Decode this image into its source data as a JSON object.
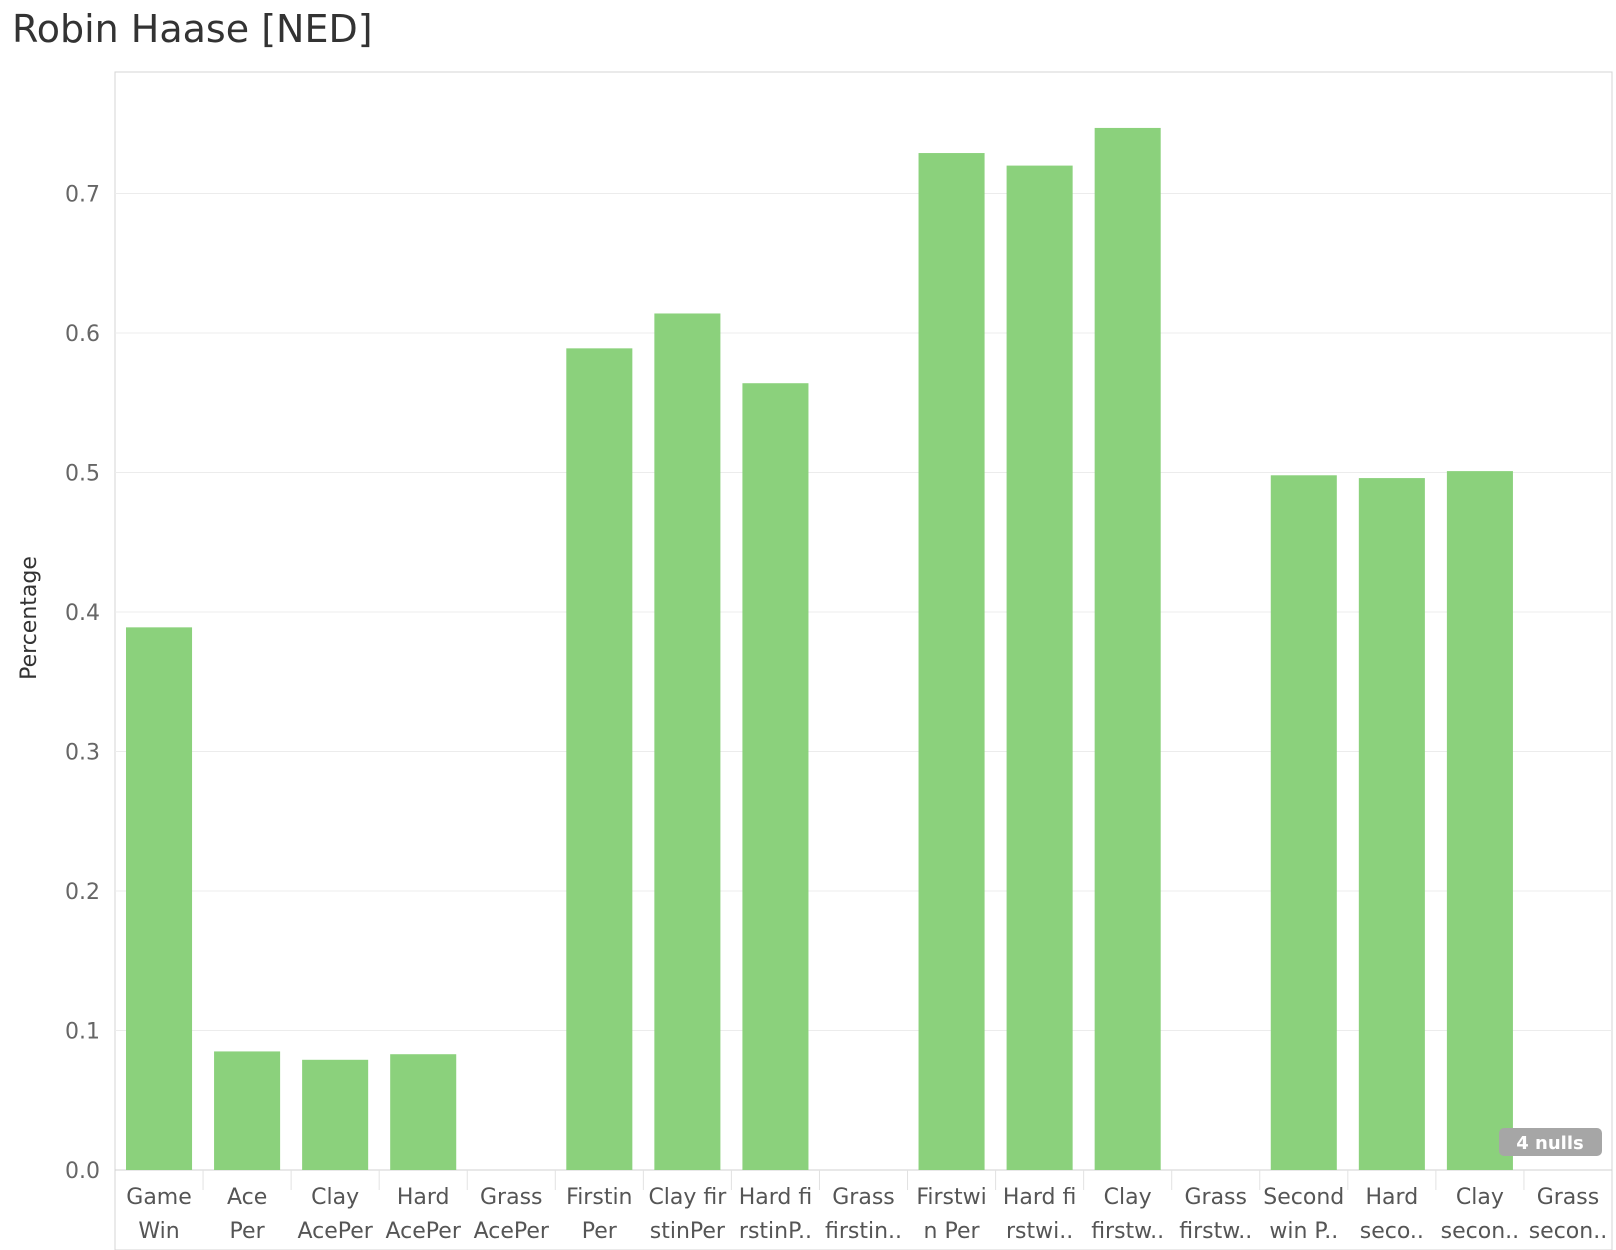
{
  "chart_data": {
    "type": "bar",
    "title": "Robin Haase [NED]",
    "xlabel": "",
    "ylabel": "Percentage",
    "ylim": [
      0,
      0.78
    ],
    "yticks": [
      "0.0",
      "0.1",
      "0.2",
      "0.3",
      "0.4",
      "0.5",
      "0.6",
      "0.7"
    ],
    "grid": true,
    "bar_color": "#8bd17c",
    "categories": [
      [
        "Game",
        "Win"
      ],
      [
        "Ace",
        "Per"
      ],
      [
        "Clay",
        "AcePer"
      ],
      [
        "Hard",
        "AcePer"
      ],
      [
        "Grass",
        "AcePer"
      ],
      [
        "Firstin",
        "Per"
      ],
      [
        "Clay fir",
        "stinPer"
      ],
      [
        "Hard fi",
        "rstinP.."
      ],
      [
        "Grass",
        "firstin.."
      ],
      [
        "Firstwi",
        "n Per"
      ],
      [
        "Hard fi",
        "rstwi.."
      ],
      [
        "Clay",
        "firstw.."
      ],
      [
        "Grass",
        "firstw.."
      ],
      [
        "Second",
        "win P.."
      ],
      [
        "Hard",
        "seco.."
      ],
      [
        "Clay",
        "secon.."
      ],
      [
        "Grass",
        "secon.."
      ]
    ],
    "values": [
      0.389,
      0.085,
      0.079,
      0.083,
      null,
      0.589,
      0.614,
      0.564,
      null,
      0.729,
      0.72,
      0.747,
      null,
      0.498,
      0.496,
      0.501,
      null
    ],
    "nulls_badge": "4 nulls"
  }
}
